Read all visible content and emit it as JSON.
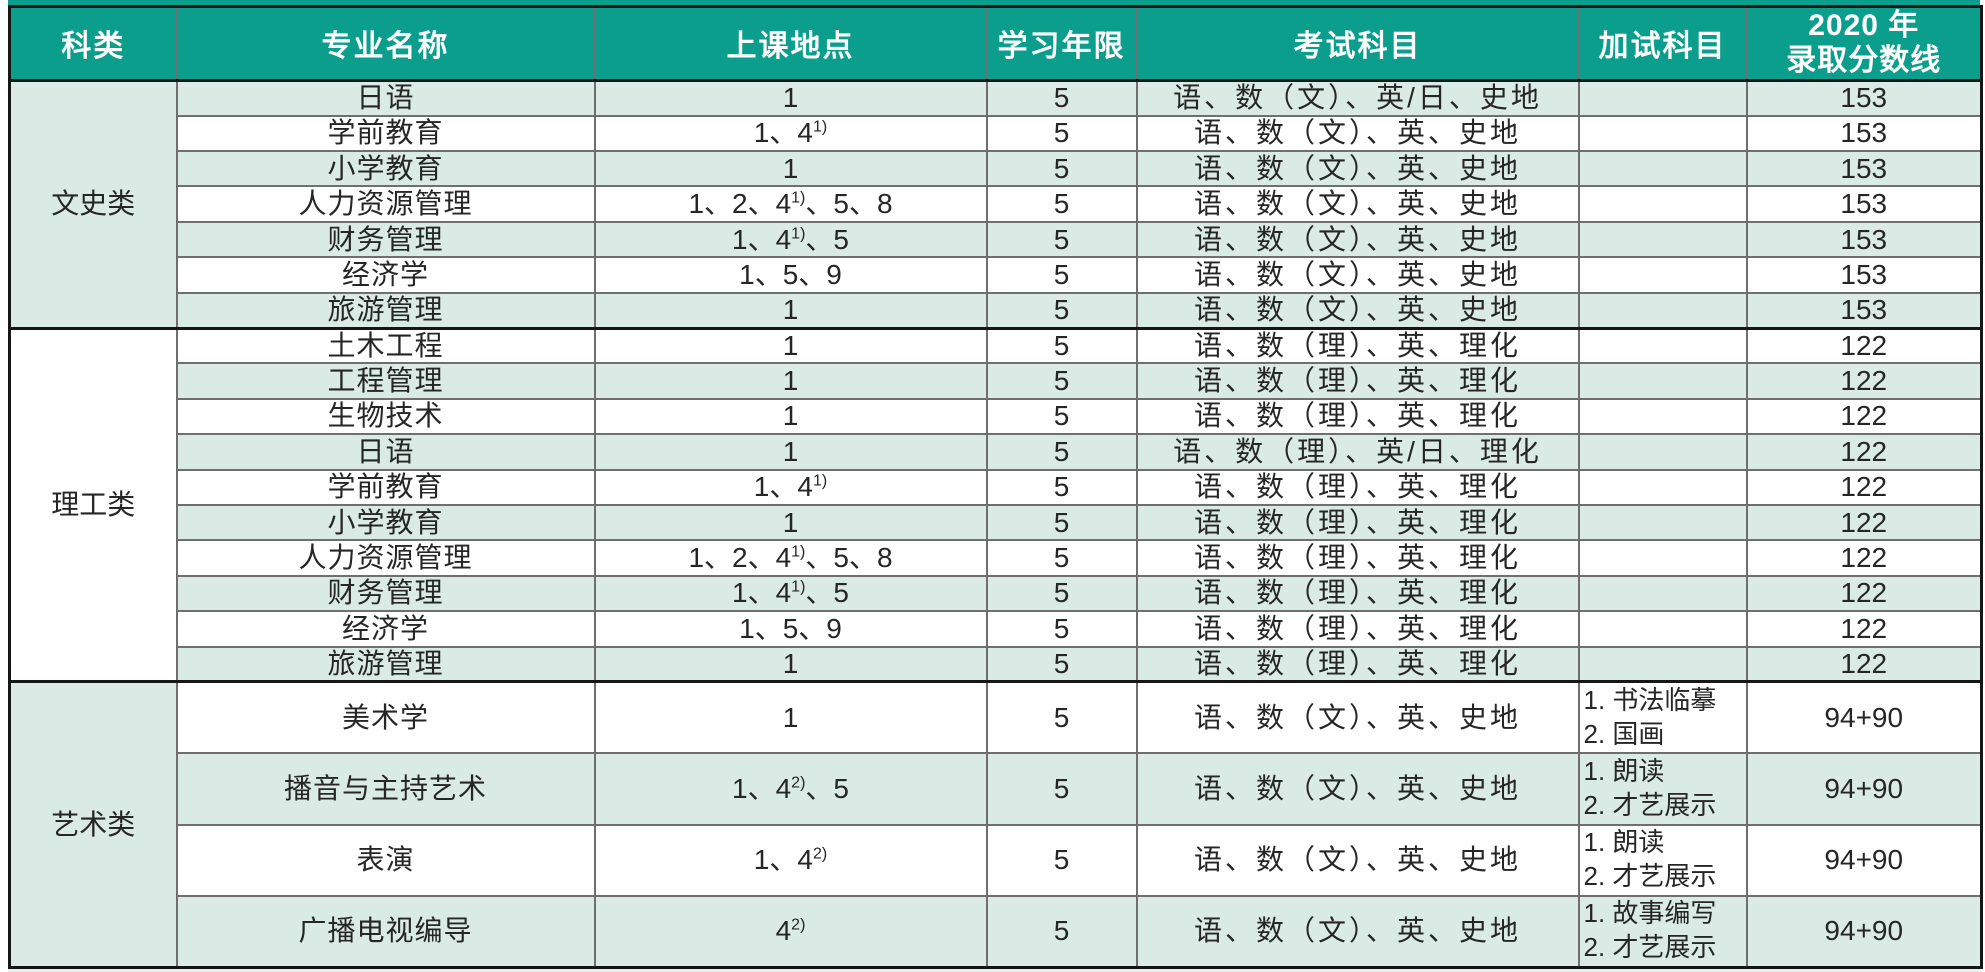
{
  "colors": {
    "header_bg": "#0B9E8D",
    "row_alt_bg": "#DAEAE5",
    "row_plain_bg": "#FFFFFF",
    "frame": "#161616",
    "grid_line": "#6F6F6F",
    "bottom_strip": "#E4F0EC",
    "header_text": "#FFFFFF",
    "body_text": "#262626"
  },
  "table": {
    "headers": [
      "科类",
      "专业名称",
      "上课地点",
      "学习年限",
      "考试科目",
      "加试科目"
    ],
    "score_header": {
      "line1": "2020 年",
      "line2": "录取分数线"
    },
    "sections": [
      {
        "category": "文史类",
        "tall": false,
        "rows": [
          {
            "major": "日语",
            "loc_pre": "1",
            "loc_sup": "",
            "loc_tail": "",
            "years": "5",
            "subjects": "语、数（文）、英/日、史地",
            "score": "153"
          },
          {
            "major": "学前教育",
            "loc_pre": "1、4",
            "loc_sup": "1)",
            "loc_tail": "",
            "years": "5",
            "subjects": "语、数（文）、英、史地",
            "score": "153"
          },
          {
            "major": "小学教育",
            "loc_pre": "1",
            "loc_sup": "",
            "loc_tail": "",
            "years": "5",
            "subjects": "语、数（文）、英、史地",
            "score": "153"
          },
          {
            "major": "人力资源管理",
            "loc_pre": "1、2、4",
            "loc_sup": "1)",
            "loc_tail": "、5、8",
            "years": "5",
            "subjects": "语、数（文）、英、史地",
            "score": "153"
          },
          {
            "major": "财务管理",
            "loc_pre": "1、4",
            "loc_sup": "1)",
            "loc_tail": "、5",
            "years": "5",
            "subjects": "语、数（文）、英、史地",
            "score": "153"
          },
          {
            "major": "经济学",
            "loc_pre": "1、5、9",
            "loc_sup": "",
            "loc_tail": "",
            "years": "5",
            "subjects": "语、数（文）、英、史地",
            "score": "153"
          },
          {
            "major": "旅游管理",
            "loc_pre": "1",
            "loc_sup": "",
            "loc_tail": "",
            "years": "5",
            "subjects": "语、数（文）、英、史地",
            "score": "153"
          }
        ]
      },
      {
        "category": "理工类",
        "tall": false,
        "rows": [
          {
            "major": "土木工程",
            "loc_pre": "1",
            "loc_sup": "",
            "loc_tail": "",
            "years": "5",
            "subjects": "语、数（理）、英、理化",
            "score": "122"
          },
          {
            "major": "工程管理",
            "loc_pre": "1",
            "loc_sup": "",
            "loc_tail": "",
            "years": "5",
            "subjects": "语、数（理）、英、理化",
            "score": "122"
          },
          {
            "major": "生物技术",
            "loc_pre": "1",
            "loc_sup": "",
            "loc_tail": "",
            "years": "5",
            "subjects": "语、数（理）、英、理化",
            "score": "122"
          },
          {
            "major": "日语",
            "loc_pre": "1",
            "loc_sup": "",
            "loc_tail": "",
            "years": "5",
            "subjects": "语、数（理）、英/日、理化",
            "score": "122"
          },
          {
            "major": "学前教育",
            "loc_pre": "1、4",
            "loc_sup": "1)",
            "loc_tail": "",
            "years": "5",
            "subjects": "语、数（理）、英、理化",
            "score": "122"
          },
          {
            "major": "小学教育",
            "loc_pre": "1",
            "loc_sup": "",
            "loc_tail": "",
            "years": "5",
            "subjects": "语、数（理）、英、理化",
            "score": "122"
          },
          {
            "major": "人力资源管理",
            "loc_pre": "1、2、4",
            "loc_sup": "1)",
            "loc_tail": "、5、8",
            "years": "5",
            "subjects": "语、数（理）、英、理化",
            "score": "122"
          },
          {
            "major": "财务管理",
            "loc_pre": "1、4",
            "loc_sup": "1)",
            "loc_tail": "、5",
            "years": "5",
            "subjects": "语、数（理）、英、理化",
            "score": "122"
          },
          {
            "major": "经济学",
            "loc_pre": "1、5、9",
            "loc_sup": "",
            "loc_tail": "",
            "years": "5",
            "subjects": "语、数（理）、英、理化",
            "score": "122"
          },
          {
            "major": "旅游管理",
            "loc_pre": "1",
            "loc_sup": "",
            "loc_tail": "",
            "years": "5",
            "subjects": "语、数（理）、英、理化",
            "score": "122"
          }
        ]
      },
      {
        "category": "艺术类",
        "tall": true,
        "rows": [
          {
            "major": "美术学",
            "loc_pre": "1",
            "loc_sup": "",
            "loc_tail": "",
            "years": "5",
            "subjects": "语、数（文）、英、史地",
            "extra1": "1. 书法临摹",
            "extra2": "2. 国画",
            "score": "94+90"
          },
          {
            "major": "播音与主持艺术",
            "loc_pre": "1、4",
            "loc_sup": "2)",
            "loc_tail": "、5",
            "years": "5",
            "subjects": "语、数（文）、英、史地",
            "extra1": "1. 朗读",
            "extra2": "2. 才艺展示",
            "score": "94+90"
          },
          {
            "major": "表演",
            "loc_pre": "1、4",
            "loc_sup": "2)",
            "loc_tail": "",
            "years": "5",
            "subjects": "语、数（文）、英、史地",
            "extra1": "1. 朗读",
            "extra2": "2. 才艺展示",
            "score": "94+90"
          },
          {
            "major": "广播电视编导",
            "loc_pre": "4",
            "loc_sup": "2)",
            "loc_tail": "",
            "years": "5",
            "subjects": "语、数（文）、英、史地",
            "extra1": "1. 故事编写",
            "extra2": "2. 才艺展示",
            "score": "94+90"
          }
        ]
      }
    ]
  }
}
